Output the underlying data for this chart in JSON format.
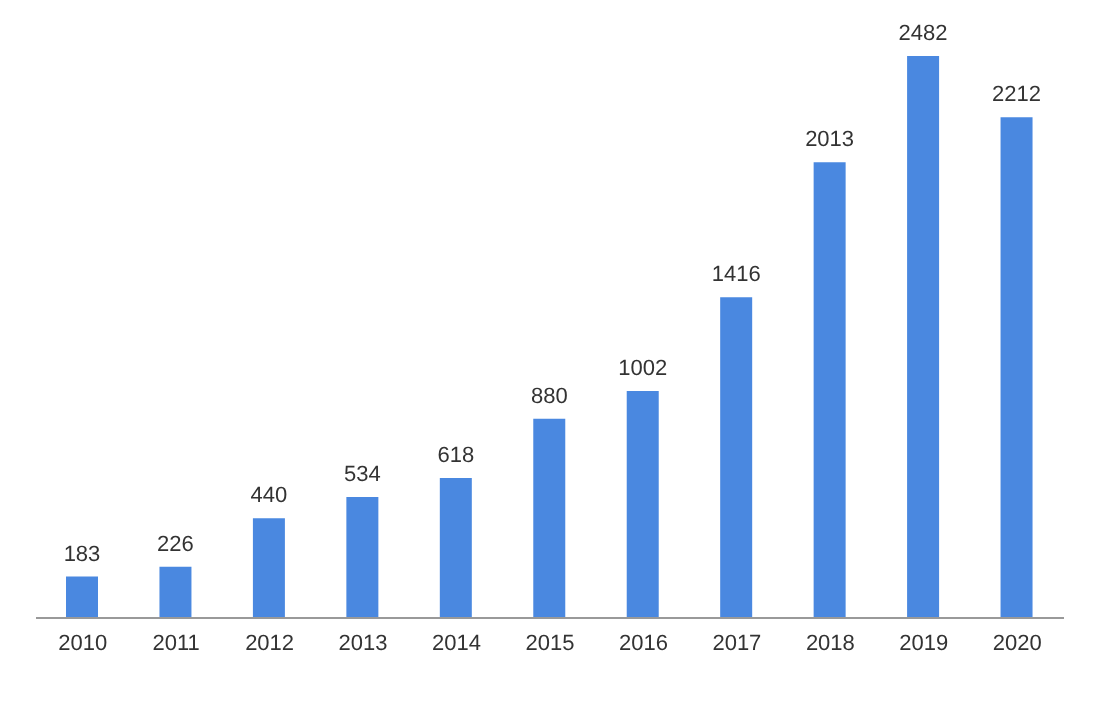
{
  "chart_data": {
    "type": "bar",
    "categories": [
      "2010",
      "2011",
      "2012",
      "2013",
      "2014",
      "2015",
      "2016",
      "2017",
      "2018",
      "2019",
      "2020"
    ],
    "values": [
      183,
      226,
      440,
      534,
      618,
      880,
      1002,
      1416,
      2013,
      2482,
      2212
    ],
    "color": "#4a88e0",
    "data_labels": true
  }
}
